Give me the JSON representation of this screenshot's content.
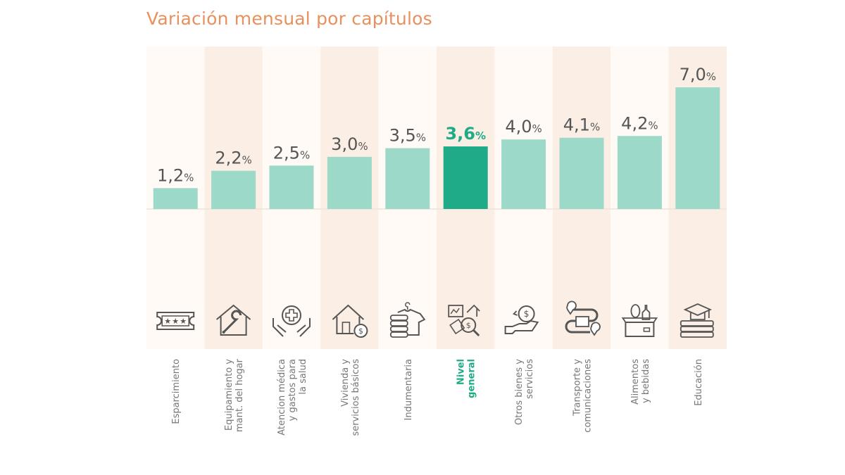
{
  "title": "Variación mensual por capítulos",
  "colors": {
    "title": "#e8905e",
    "bar": "#9dd9c9",
    "bar_highlight": "#1fab88",
    "label": "#555555",
    "label_highlight": "#1fab88",
    "band_light": "#fffaf5",
    "band_dark": "#fbefe5",
    "icon": "#555555"
  },
  "chart_data": {
    "type": "bar",
    "title": "Variación mensual por capítulos",
    "xlabel": "",
    "ylabel": "",
    "unit": "%",
    "ylim": [
      0,
      7.0
    ],
    "grid": false,
    "legend": "none",
    "categories": [
      "Esparcimiento",
      "Equipamiento y mant. del hogar",
      "Atencion médica y gastos para la salud",
      "Vivienda y servicios básicos",
      "Indumentaria",
      "Nivel general",
      "Otros bienes y servicios",
      "Transporte y comunicaciones",
      "Alimentos y bebidas",
      "Educación"
    ],
    "category_lines": [
      [
        "Esparcimiento"
      ],
      [
        "Equipamiento y",
        "mant. del hogar"
      ],
      [
        "Atencion médica",
        "y gastos para",
        "la salud"
      ],
      [
        "Vivienda y",
        "servicios básicos"
      ],
      [
        "Indumentaria"
      ],
      [
        "Nivel",
        "general"
      ],
      [
        "Otros bienes y",
        "servicios"
      ],
      [
        "Transporte y",
        "comunicaciones"
      ],
      [
        "Alimentos",
        "y bebidas"
      ],
      [
        "Educación"
      ]
    ],
    "values": [
      1.2,
      2.2,
      2.5,
      3.0,
      3.5,
      3.6,
      4.0,
      4.1,
      4.2,
      7.0
    ],
    "value_labels": [
      "1,2",
      "2,2",
      "2,5",
      "3,0",
      "3,5",
      "3,6",
      "4,0",
      "4,1",
      "4,2",
      "7,0"
    ],
    "highlight_index": 5,
    "icons": [
      "ticket-icon",
      "house-wrench-icon",
      "hands-health-cross-icon",
      "house-dollar-icon",
      "shirt-clothes-icon",
      "economy-magnifier-icon",
      "hand-money-icon",
      "route-truck-icon",
      "grocery-box-icon",
      "graduation-books-icon"
    ]
  }
}
